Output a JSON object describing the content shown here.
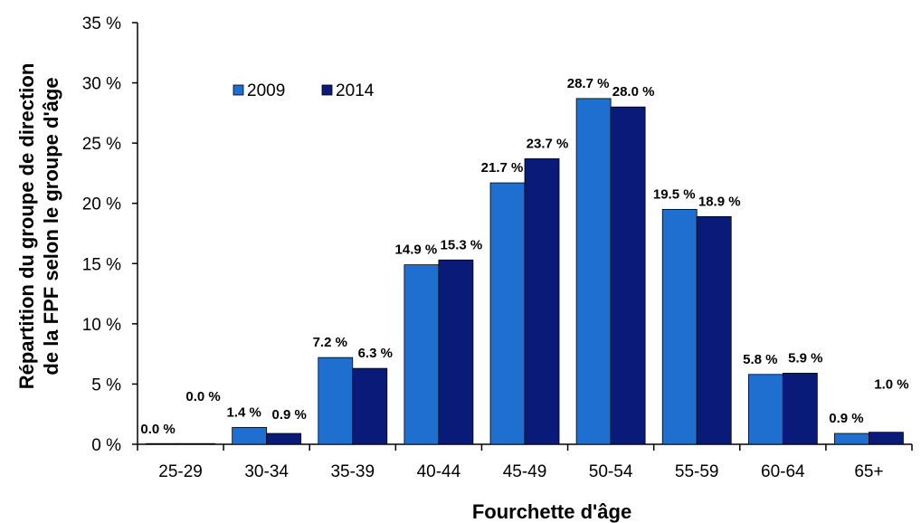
{
  "chart_data": {
    "type": "bar",
    "xlabel": "Fourchette d'âge",
    "ylabel_lines": [
      "Répartition du groupe de direction",
      "de la FPF selon le groupe d'âge"
    ],
    "categories": [
      "25-29",
      "30-34",
      "35-39",
      "40-44",
      "45-49",
      "50-54",
      "55-59",
      "60-64",
      "65+"
    ],
    "series": [
      {
        "name": "2009",
        "color": "#1f6fd1",
        "values": [
          0.0,
          1.4,
          7.2,
          14.9,
          21.7,
          28.7,
          19.5,
          5.8,
          0.9
        ],
        "labels": [
          "0.0 %",
          "1.4 %",
          "7.2 %",
          "14.9 %",
          "21.7 %",
          "28.7 %",
          "19.5 %",
          "5.8 %",
          "0.9 %"
        ]
      },
      {
        "name": "2014",
        "color": "#0a1a78",
        "values": [
          0.0,
          0.9,
          6.3,
          15.3,
          23.7,
          28.0,
          18.9,
          5.9,
          1.0
        ],
        "labels": [
          "0.0 %",
          "0.9 %",
          "6.3 %",
          "15.3 %",
          "23.7 %",
          "28.0 %",
          "18.9 %",
          "5.9 %",
          "1.0 %"
        ]
      }
    ],
    "ylim": [
      0,
      35
    ],
    "yticks": [
      0,
      5,
      10,
      15,
      20,
      25,
      30,
      35
    ],
    "ytick_labels": [
      "0 %",
      "5 %",
      "10 %",
      "15 %",
      "20 %",
      "25 %",
      "30 %",
      "35 %"
    ],
    "grid": false,
    "legend_position": "top-left"
  }
}
